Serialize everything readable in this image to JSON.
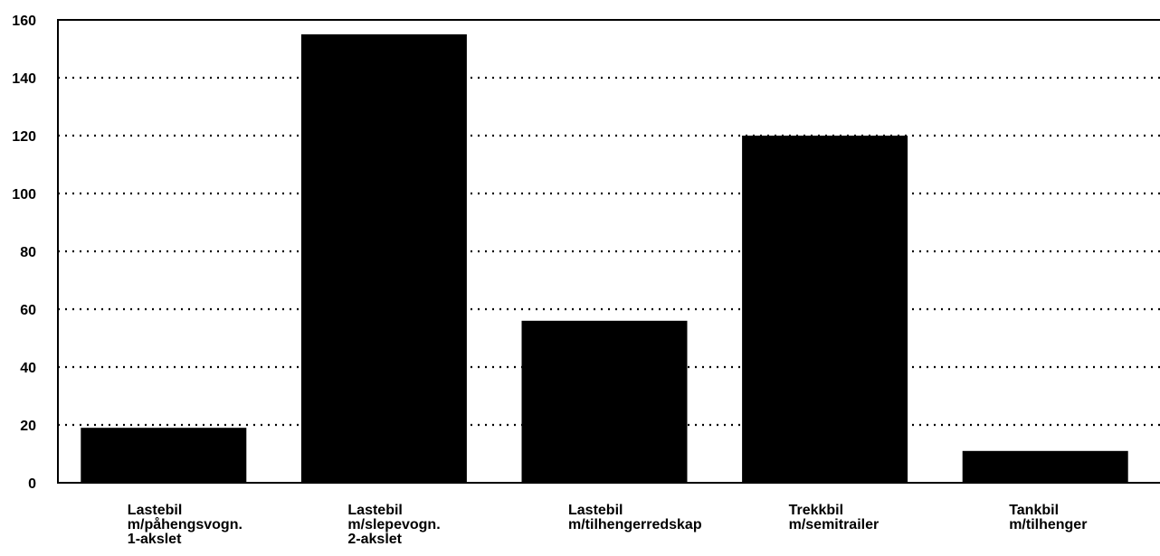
{
  "chart_data": {
    "type": "bar",
    "title": "",
    "xlabel": "",
    "ylabel": "",
    "ylim": [
      0,
      160
    ],
    "yticks": [
      0,
      20,
      40,
      60,
      80,
      100,
      120,
      140,
      160
    ],
    "grid": true,
    "legend": "none",
    "categories": [
      [
        "Lastebil",
        "m/påhengsvogn.",
        "1-akslet"
      ],
      [
        "Lastebil",
        "m/slepevogn.",
        "2-akslet"
      ],
      [
        "Lastebil",
        "m/tilhengerredskap"
      ],
      [
        "Trekkbil",
        "m/semitrailer"
      ],
      [
        "Tankbil",
        "m/tilhenger"
      ]
    ],
    "values": [
      19,
      155,
      56,
      120,
      11
    ],
    "bar_color": "#000000"
  }
}
